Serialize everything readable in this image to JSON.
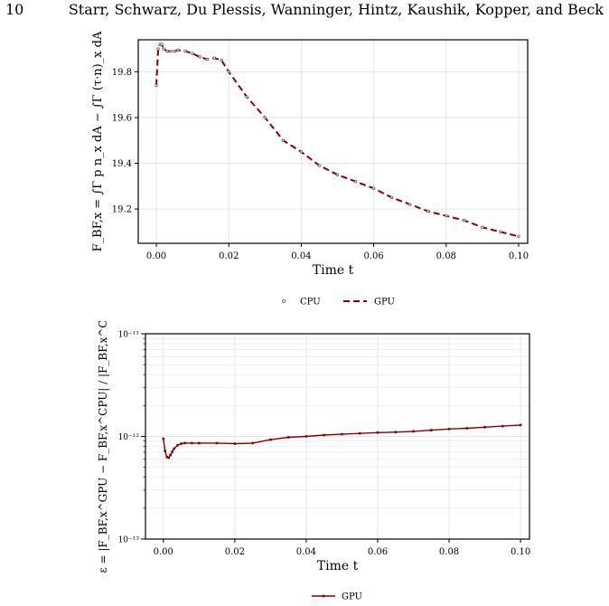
{
  "header": {
    "page_number": "10",
    "authors": "Starr, Schwarz, Du Plessis, Wanninger, Hintz, Kaushik, Kopper, and Beck"
  },
  "colors": {
    "series": "#8b0000",
    "grid": "#e6e6e6",
    "axis": "#000000"
  },
  "chart_data": [
    {
      "type": "line",
      "xlabel": "Time t",
      "ylabel": "F_BF,x = ∫Γ p n_x dA − ∫Γ (τ·n)_x dA",
      "xlim": [
        -0.005,
        0.1025
      ],
      "ylim": [
        19.05,
        19.94
      ],
      "xticks": [
        "0.00",
        "0.02",
        "0.04",
        "0.06",
        "0.08",
        "0.10"
      ],
      "yticks": [
        "19.2",
        "19.4",
        "19.6",
        "19.8"
      ],
      "grid": true,
      "legend": "below",
      "legend_entries": [
        "CPU",
        "GPU"
      ],
      "series": [
        {
          "name": "CPU",
          "style": "markers",
          "x": [
            0.0,
            0.0005,
            0.001,
            0.0015,
            0.002,
            0.003,
            0.004,
            0.005,
            0.006,
            0.008,
            0.01,
            0.012,
            0.014,
            0.016,
            0.018,
            0.02,
            0.025,
            0.03,
            0.035,
            0.04,
            0.045,
            0.05,
            0.055,
            0.06,
            0.065,
            0.07,
            0.075,
            0.08,
            0.085,
            0.09,
            0.095,
            0.1
          ],
          "y": [
            19.74,
            19.9,
            19.92,
            19.92,
            19.9,
            19.89,
            19.89,
            19.89,
            19.895,
            19.89,
            19.88,
            19.865,
            19.855,
            19.86,
            19.85,
            19.8,
            19.69,
            19.6,
            19.5,
            19.45,
            19.39,
            19.35,
            19.32,
            19.29,
            19.25,
            19.22,
            19.19,
            19.17,
            19.15,
            19.12,
            19.1,
            19.08
          ]
        },
        {
          "name": "GPU",
          "style": "dashed",
          "x": [
            0.0,
            0.0005,
            0.001,
            0.0015,
            0.002,
            0.003,
            0.004,
            0.005,
            0.006,
            0.008,
            0.01,
            0.012,
            0.014,
            0.016,
            0.018,
            0.02,
            0.025,
            0.03,
            0.035,
            0.04,
            0.045,
            0.05,
            0.055,
            0.06,
            0.065,
            0.07,
            0.075,
            0.08,
            0.085,
            0.09,
            0.095,
            0.1
          ],
          "y": [
            19.74,
            19.9,
            19.92,
            19.92,
            19.9,
            19.89,
            19.89,
            19.89,
            19.895,
            19.89,
            19.88,
            19.865,
            19.855,
            19.86,
            19.85,
            19.8,
            19.69,
            19.6,
            19.5,
            19.45,
            19.39,
            19.35,
            19.32,
            19.29,
            19.25,
            19.22,
            19.19,
            19.17,
            19.15,
            19.12,
            19.1,
            19.08
          ]
        }
      ]
    },
    {
      "type": "line",
      "xlabel": "Time t",
      "ylabel": "ε = |F_BF,x^GPU − F_BF,x^CPU| / |F_BF,x^CPU|",
      "xlim": [
        -0.005,
        0.1025
      ],
      "ylim": [
        1e-13,
        1e-11
      ],
      "yscale": "log",
      "xticks": [
        "0.00",
        "0.02",
        "0.04",
        "0.06",
        "0.08",
        "0.10"
      ],
      "yticks": [
        "10⁻¹³",
        "10⁻¹²",
        "10⁻¹¹"
      ],
      "grid": true,
      "legend": "below",
      "legend_entries": [
        "GPU"
      ],
      "series": [
        {
          "name": "GPU",
          "style": "line-markers",
          "x": [
            0.0,
            0.0005,
            0.001,
            0.0015,
            0.002,
            0.0025,
            0.003,
            0.004,
            0.005,
            0.006,
            0.008,
            0.01,
            0.015,
            0.02,
            0.025,
            0.03,
            0.035,
            0.04,
            0.045,
            0.05,
            0.055,
            0.06,
            0.065,
            0.07,
            0.075,
            0.08,
            0.085,
            0.09,
            0.095,
            0.1
          ],
          "y": [
            9.5e-13,
            7.2e-13,
            6.3e-13,
            6.2e-13,
            6.6e-13,
            7.1e-13,
            7.6e-13,
            8.2e-13,
            8.5e-13,
            8.6e-13,
            8.6e-13,
            8.6e-13,
            8.6e-13,
            8.5e-13,
            8.6e-13,
            9.3e-13,
            9.8e-13,
            1e-12,
            1.03e-12,
            1.05e-12,
            1.07e-12,
            1.09e-12,
            1.1e-12,
            1.12e-12,
            1.15e-12,
            1.18e-12,
            1.2e-12,
            1.23e-12,
            1.26e-12,
            1.29e-12
          ]
        }
      ]
    }
  ]
}
